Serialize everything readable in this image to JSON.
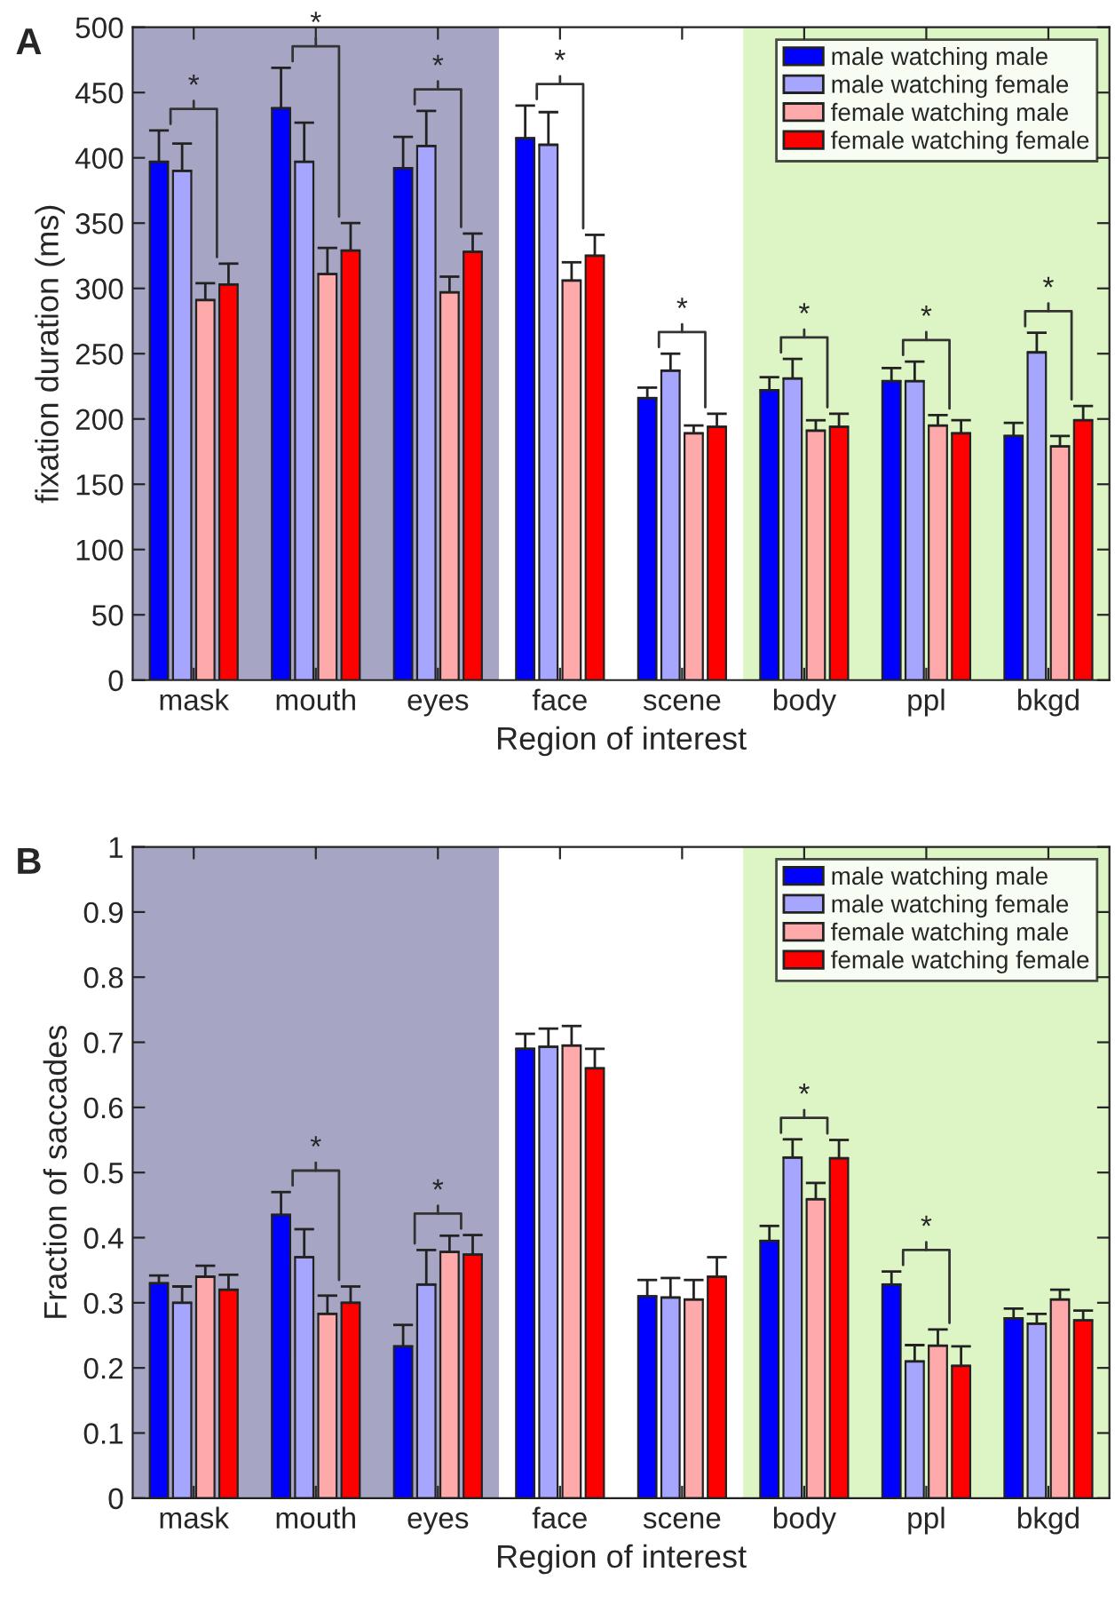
{
  "chart_data": [
    {
      "type": "bar",
      "title": "A",
      "xlabel": "Region of interest",
      "ylabel": "fixation duration (ms)",
      "categories": [
        "mask",
        "mouth",
        "eyes",
        "face",
        "scene",
        "body",
        "ppl",
        "bkgd"
      ],
      "series": [
        {
          "name": "male watching male",
          "color": "#0000ff",
          "values": [
            397,
            438,
            392,
            415,
            216,
            222,
            229,
            187
          ],
          "errors": [
            24,
            31,
            24,
            25,
            8,
            10,
            10,
            10
          ]
        },
        {
          "name": "male watching female",
          "color": "#a6a6ff",
          "values": [
            390,
            397,
            409,
            410,
            237,
            231,
            229,
            251
          ],
          "errors": [
            21,
            30,
            27,
            25,
            13,
            15,
            15,
            15
          ]
        },
        {
          "name": "female watching male",
          "color": "#ffaaaa",
          "values": [
            291,
            311,
            297,
            306,
            189,
            191,
            195,
            179
          ],
          "errors": [
            13,
            20,
            12,
            14,
            6,
            8,
            8,
            8
          ]
        },
        {
          "name": "female watching female",
          "color": "#ff0000",
          "values": [
            303,
            329,
            328,
            325,
            194,
            194,
            189,
            199
          ],
          "errors": [
            16,
            21,
            14,
            16,
            10,
            10,
            10,
            11
          ]
        }
      ],
      "ylim": [
        0,
        500
      ],
      "yticks": [
        0,
        50,
        100,
        150,
        200,
        250,
        300,
        350,
        400,
        450,
        500
      ],
      "bands": [
        {
          "axis": "x",
          "from": "mask",
          "to": "eyes",
          "color": "#a6a6c4"
        },
        {
          "axis": "x",
          "from": "body",
          "to": "bkgd",
          "color": "#ddf5c5"
        }
      ],
      "annotations": [
        "*",
        "*",
        "*",
        "*",
        "*",
        "*",
        "*",
        "*"
      ],
      "legend": "top right",
      "grid": false
    },
    {
      "type": "bar",
      "title": "B",
      "xlabel": "Region of interest",
      "ylabel": "Fraction of saccades",
      "categories": [
        "mask",
        "mouth",
        "eyes",
        "face",
        "scene",
        "body",
        "ppl",
        "bkgd"
      ],
      "series": [
        {
          "name": "male watching male",
          "color": "#0000ff",
          "values": [
            0.33,
            0.435,
            0.233,
            0.69,
            0.31,
            0.395,
            0.328,
            0.276
          ],
          "errors": [
            0.012,
            0.035,
            0.033,
            0.023,
            0.025,
            0.023,
            0.02,
            0.015
          ]
        },
        {
          "name": "male watching female",
          "color": "#a6a6ff",
          "values": [
            0.3,
            0.37,
            0.328,
            0.693,
            0.308,
            0.523,
            0.21,
            0.268
          ],
          "errors": [
            0.025,
            0.043,
            0.053,
            0.028,
            0.03,
            0.028,
            0.025,
            0.015
          ]
        },
        {
          "name": "female watching male",
          "color": "#ffaaaa",
          "values": [
            0.34,
            0.283,
            0.378,
            0.695,
            0.305,
            0.459,
            0.234,
            0.305
          ],
          "errors": [
            0.017,
            0.028,
            0.025,
            0.03,
            0.03,
            0.025,
            0.025,
            0.015
          ]
        },
        {
          "name": "female watching female",
          "color": "#ff0000",
          "values": [
            0.32,
            0.3,
            0.374,
            0.66,
            0.34,
            0.522,
            0.203,
            0.273
          ],
          "errors": [
            0.023,
            0.025,
            0.03,
            0.03,
            0.03,
            0.028,
            0.03,
            0.015
          ]
        }
      ],
      "ylim": [
        0,
        1
      ],
      "yticks": [
        0,
        0.1,
        0.2,
        0.3,
        0.4,
        0.5,
        0.6,
        0.7,
        0.8,
        0.9,
        1
      ],
      "bands": [
        {
          "axis": "x",
          "from": "mask",
          "to": "eyes",
          "color": "#a6a6c4"
        },
        {
          "axis": "x",
          "from": "body",
          "to": "bkgd",
          "color": "#ddf5c5"
        }
      ],
      "annotations": [
        "*",
        "*",
        "*",
        "*"
      ],
      "legend": "top right",
      "grid": false
    }
  ]
}
